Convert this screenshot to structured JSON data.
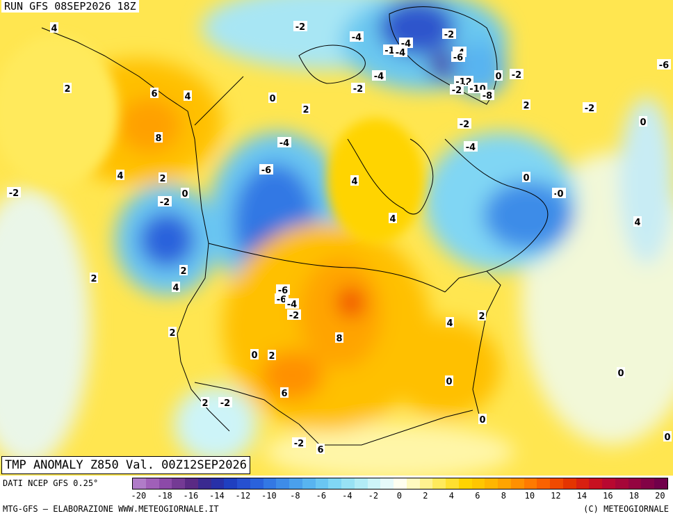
{
  "header": {
    "run_label": "RUN GFS 08SEP2026 18Z"
  },
  "title": {
    "text": "TMP ANOMALY Z850 Val. 00Z12SEP2026"
  },
  "footer": {
    "data_source": "DATI NCEP GFS 0.25°",
    "credit_left": "MTG-GFS — ELABORAZIONE WWW.METEOGIORNALE.IT",
    "credit_right": "(C) METEOGIORNALE"
  },
  "scale": {
    "unit_values": [
      -20,
      -19,
      -18,
      -17,
      -16,
      -15,
      -14,
      -13,
      -12,
      -11,
      -10,
      -9,
      -8,
      -7,
      -6,
      -5,
      -4,
      -3,
      -2,
      -1,
      0,
      1,
      2,
      3,
      4,
      5,
      6,
      7,
      8,
      9,
      10,
      11,
      12,
      13,
      14,
      15,
      16,
      17,
      18,
      19,
      20
    ],
    "labels": [
      "-20",
      "-18",
      "-16",
      "-14",
      "-12",
      "-10",
      "-8",
      "-6",
      "-4",
      "-2",
      "0",
      "2",
      "4",
      "6",
      "8",
      "10",
      "12",
      "14",
      "16",
      "18",
      "20"
    ],
    "colors": [
      "#b07cc8",
      "#a060b8",
      "#8c4aa8",
      "#743a94",
      "#5a2a84",
      "#3a2a90",
      "#2830a8",
      "#1f3fc0",
      "#2650d0",
      "#2a62dc",
      "#3378e4",
      "#3e8ce8",
      "#4aa0ec",
      "#58b4f0",
      "#6ac6f2",
      "#80d6f4",
      "#98e2f4",
      "#b2ecf6",
      "#cdf4f8",
      "#e6fafa",
      "#fffff0",
      "#fffac0",
      "#fff290",
      "#ffea5c",
      "#ffe030",
      "#ffd400",
      "#ffc600",
      "#ffb600",
      "#ffa400",
      "#ff9000",
      "#ff7a00",
      "#fa6200",
      "#f04a00",
      "#e43400",
      "#d82010",
      "#c81020",
      "#b80830",
      "#a60638",
      "#940440",
      "#820246",
      "#70004a"
    ]
  },
  "anomaly_labels": [
    "4",
    "2",
    "6",
    "4",
    "8",
    "4",
    "2",
    "0",
    "-2",
    "-2",
    "-2",
    "-6",
    "-4",
    "0",
    "2",
    "4",
    "2",
    "-2",
    "-4",
    "-6",
    "-6",
    "-4",
    "-2",
    "2",
    "-6",
    "-4",
    "-2",
    "0",
    "2",
    "4",
    "4",
    "8",
    "6",
    "2",
    "-2",
    "-4",
    "-12",
    "-4",
    "-2",
    "-4",
    "-6",
    "0",
    "-2",
    "-12",
    "-10",
    "-8",
    "-2",
    "-2",
    "-4",
    "0",
    "-6",
    "4",
    "-2",
    "0",
    "0",
    "0",
    "2",
    "0",
    "4",
    "2",
    "0",
    "0",
    "6",
    "2"
  ]
}
